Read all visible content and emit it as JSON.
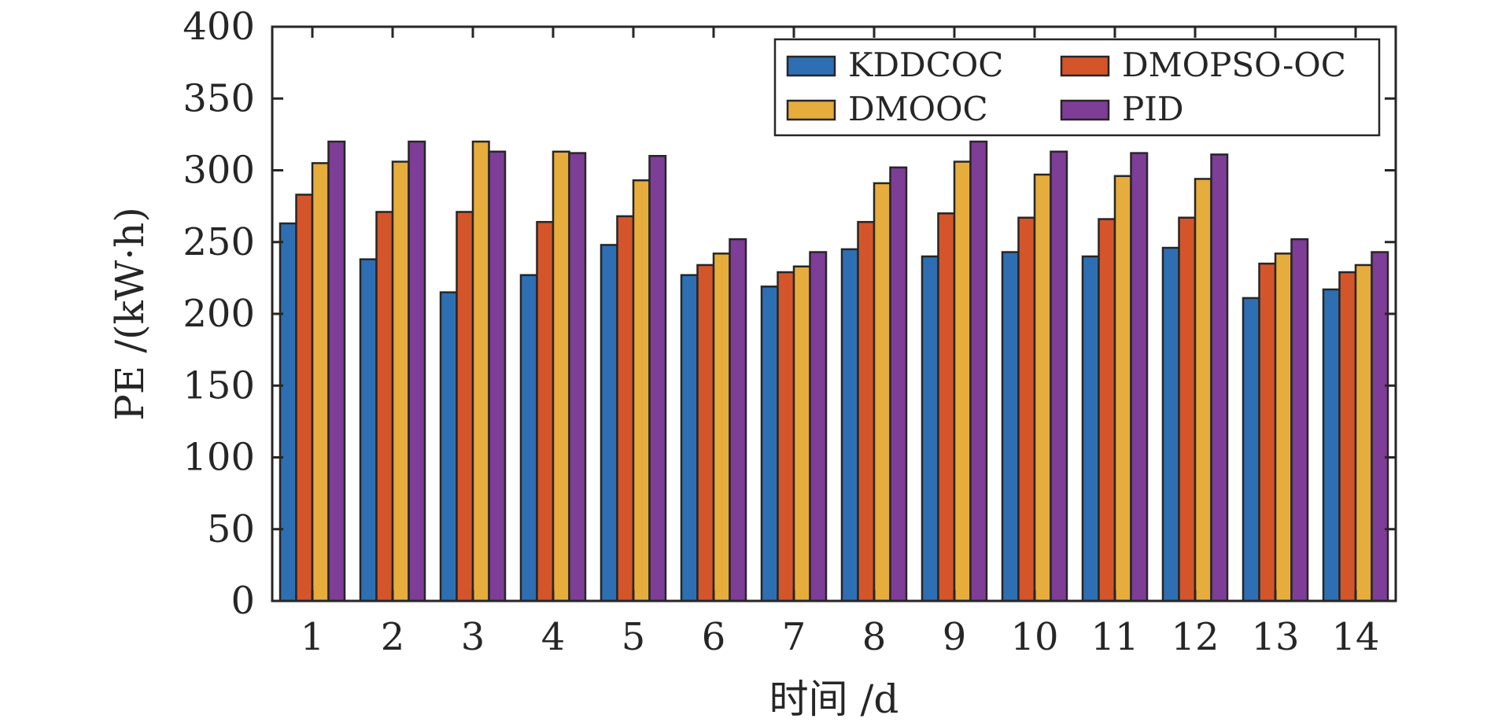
{
  "chart_data": {
    "type": "bar",
    "title": "",
    "xlabel": "时间 /d",
    "ylabel": "PE /(kW·h)",
    "ylim": [
      0,
      400
    ],
    "yticks": [
      0,
      50,
      100,
      150,
      200,
      250,
      300,
      350,
      400
    ],
    "categories": [
      "1",
      "2",
      "3",
      "4",
      "5",
      "6",
      "7",
      "8",
      "9",
      "10",
      "11",
      "12",
      "13",
      "14"
    ],
    "legend_position": "top-right",
    "grid": false,
    "series": [
      {
        "name": "KDDCOC",
        "color": "#2e6fb3",
        "values": [
          263,
          238,
          215,
          227,
          248,
          227,
          219,
          245,
          240,
          243,
          240,
          246,
          211,
          217
        ]
      },
      {
        "name": "DMOPSO-OC",
        "color": "#d4552a",
        "values": [
          283,
          271,
          271,
          264,
          268,
          234,
          229,
          264,
          270,
          267,
          266,
          267,
          235,
          229
        ]
      },
      {
        "name": "DMOOC",
        "color": "#e6ac3c",
        "values": [
          305,
          306,
          320,
          313,
          293,
          242,
          233,
          291,
          306,
          297,
          296,
          294,
          242,
          234
        ]
      },
      {
        "name": "PID",
        "color": "#7e3d96",
        "values": [
          320,
          320,
          313,
          312,
          310,
          252,
          243,
          302,
          320,
          313,
          312,
          311,
          252,
          243
        ]
      }
    ]
  }
}
